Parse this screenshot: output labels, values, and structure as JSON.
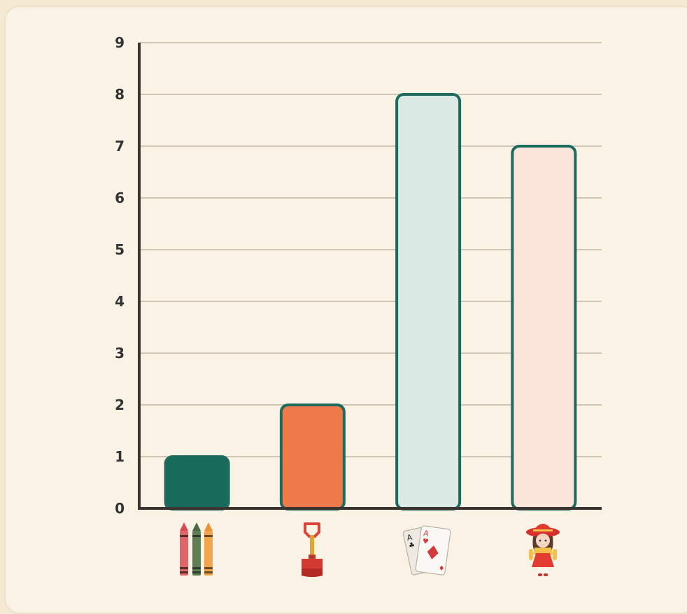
{
  "chart_data": {
    "type": "bar",
    "title": "",
    "xlabel": "",
    "ylabel": "",
    "categories": [
      "crayons",
      "shovel",
      "playing-cards",
      "doll"
    ],
    "values": [
      1,
      2,
      8,
      7
    ],
    "ylim": [
      0,
      9
    ],
    "yticks": [
      "0",
      "1",
      "2",
      "3",
      "4",
      "5",
      "6",
      "7",
      "8",
      "9"
    ],
    "grid": true,
    "bar_colors": [
      "#176b5b",
      "#f07a4a",
      "#dceae6",
      "#fbe4da"
    ],
    "bar_outline": "#1d6a5e",
    "x_tick_icons": [
      "crayons-icon",
      "shovel-icon",
      "playing-cards-icon",
      "doll-icon"
    ]
  }
}
